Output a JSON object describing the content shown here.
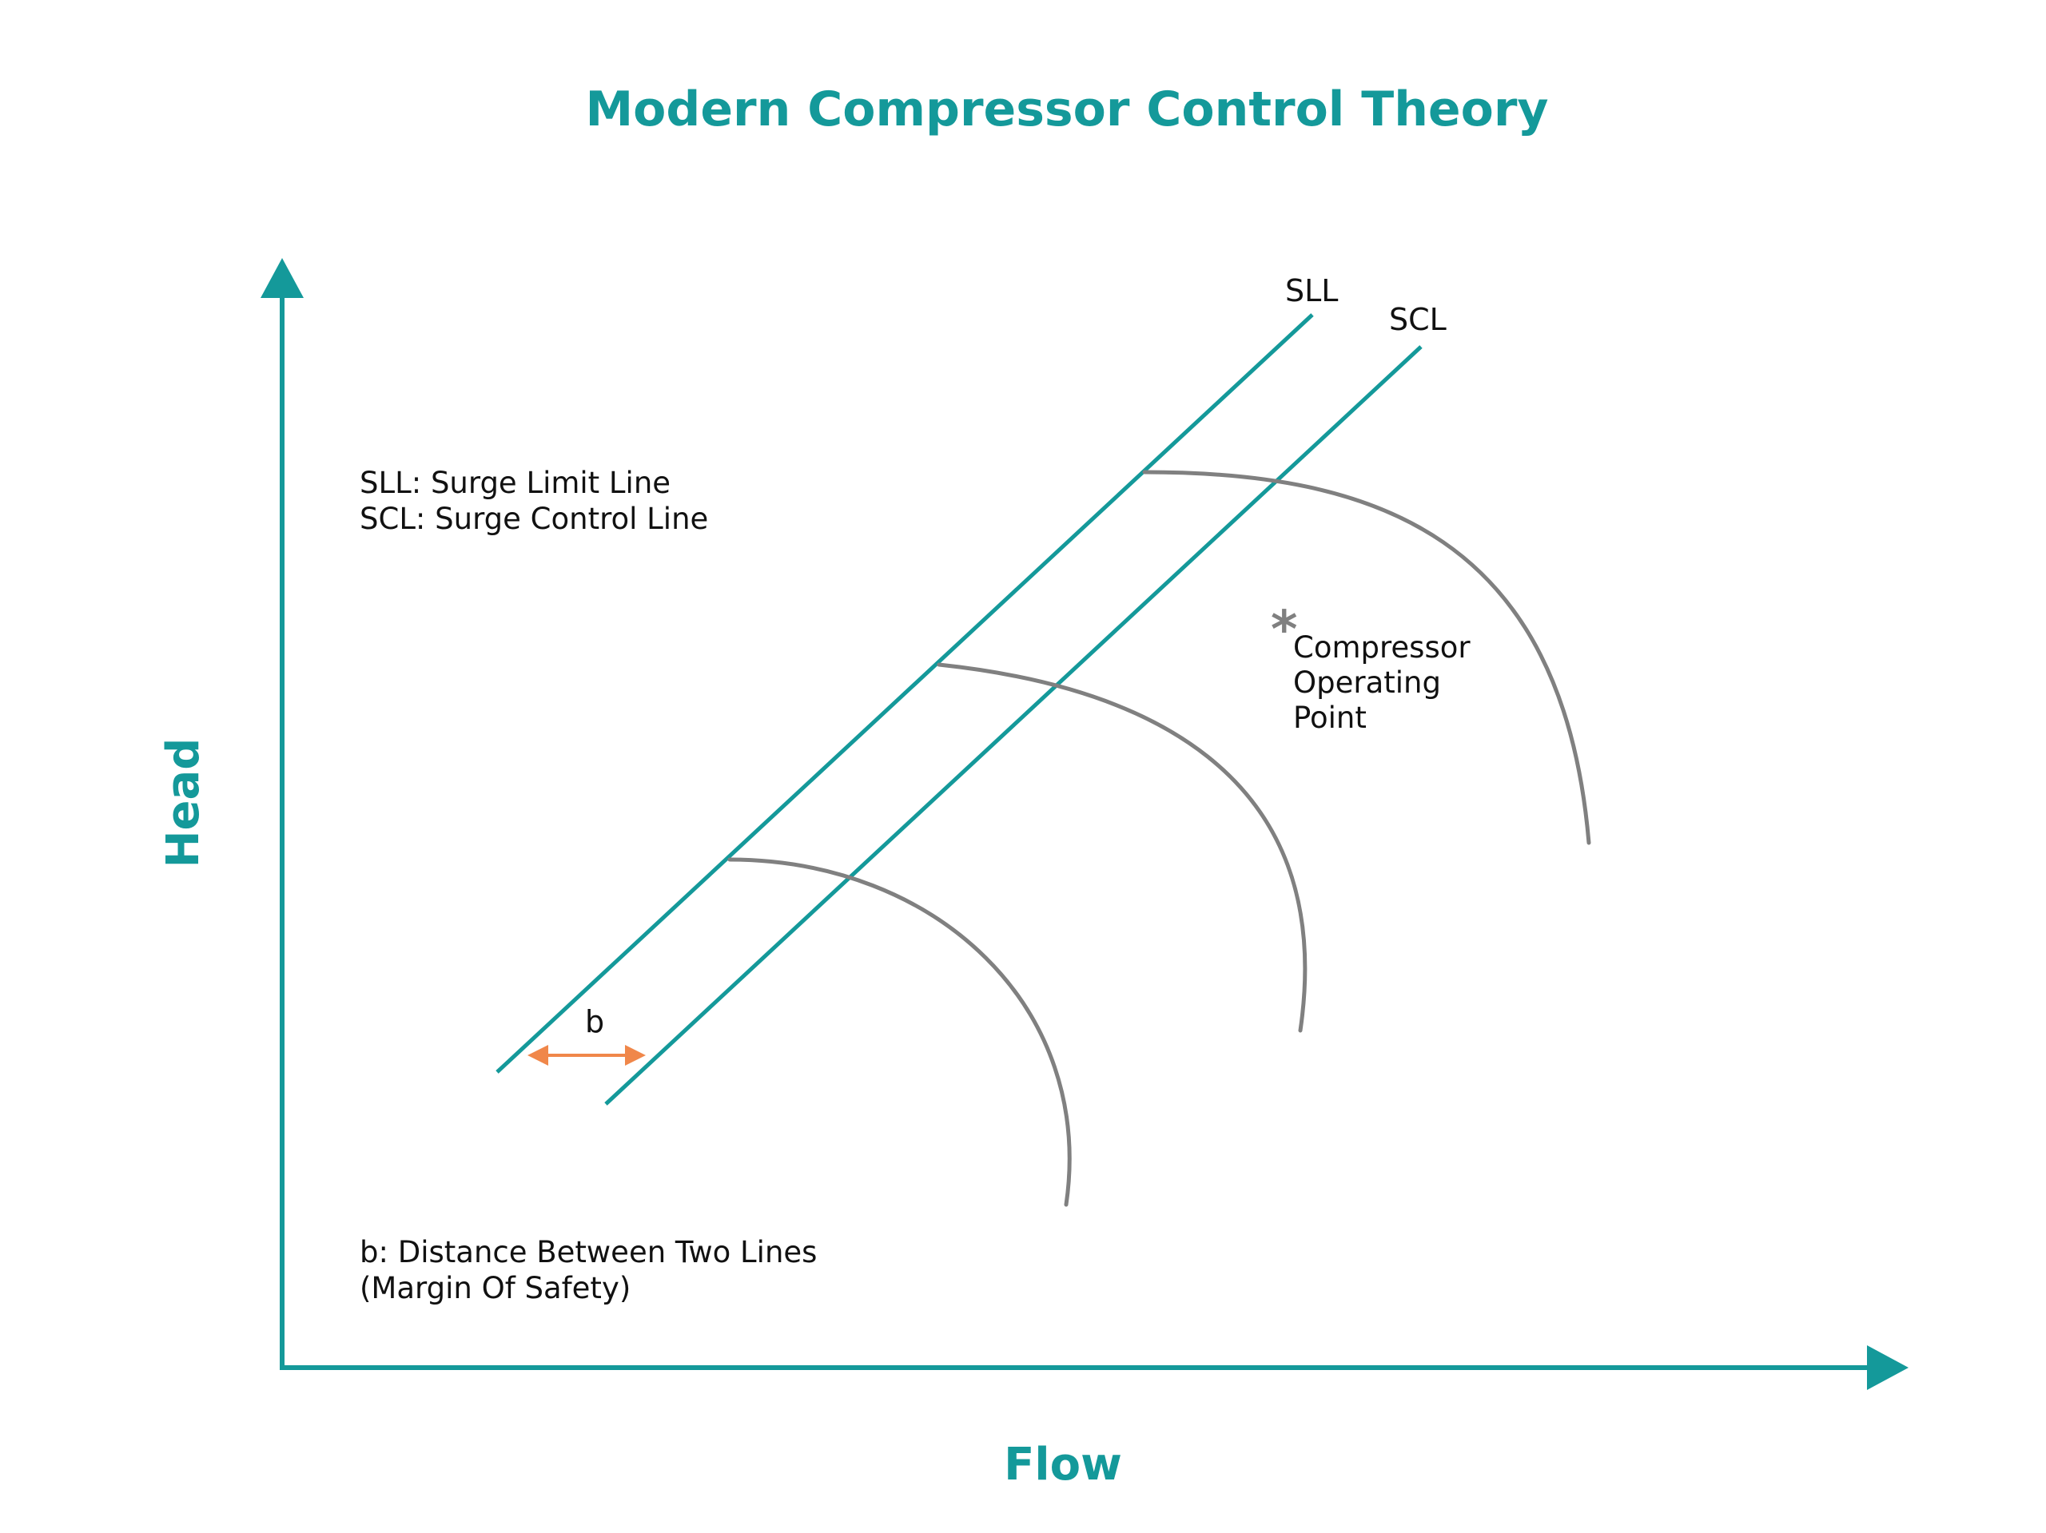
{
  "title": "Modern Compressor Control Theory",
  "axes": {
    "x_label": "Flow",
    "y_label": "Head"
  },
  "lines": {
    "sll_label": "SLL",
    "scl_label": "SCL"
  },
  "legend": {
    "line1": "SLL: Surge Limit Line",
    "line2": "SCL: Surge Control Line"
  },
  "operating_point": {
    "marker": "*",
    "line1": "Compressor",
    "line2": "Operating",
    "line3": "Point"
  },
  "margin": {
    "label": "b",
    "note_line1": "b: Distance Between Two Lines",
    "note_line2": "(Margin Of Safety)"
  },
  "colors": {
    "accent": "#14999a",
    "curve": "#808080",
    "arrow": "#f0874a",
    "text": "#111111"
  }
}
